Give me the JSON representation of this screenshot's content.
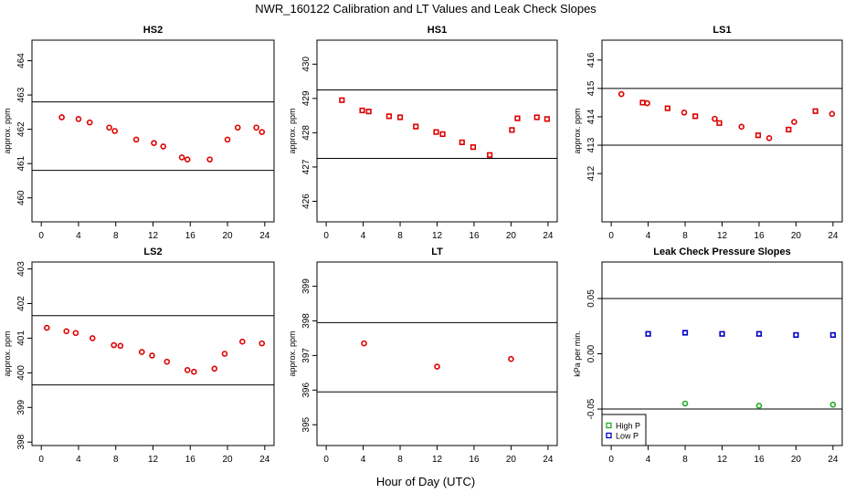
{
  "figure": {
    "title": "NWR_160122  Calibration and LT Values and Leak Check Slopes",
    "xlabel": "Hour of Day (UTC)"
  },
  "chart_data": [
    {
      "type": "scatter",
      "title": "HS2",
      "ylabel": "approx. ppm",
      "xlim": [
        -1,
        25
      ],
      "ylim": [
        459.3,
        464.6
      ],
      "xticks": [
        0,
        4,
        8,
        12,
        16,
        20,
        24
      ],
      "xtick_labels": [
        "0",
        "4",
        "8",
        "12",
        "16",
        "20",
        "24"
      ],
      "yticks": [
        460,
        461,
        462,
        463,
        464
      ],
      "ytick_labels": [
        "460",
        "461",
        "462",
        "463",
        "464"
      ],
      "hlines": [
        462.8,
        460.8
      ],
      "series": [
        {
          "marker": "circle",
          "color": "#dd0000",
          "points": [
            [
              2.2,
              462.35
            ],
            [
              4.0,
              462.3
            ],
            [
              5.2,
              462.2
            ],
            [
              7.3,
              462.05
            ],
            [
              7.9,
              461.95
            ],
            [
              10.2,
              461.7
            ],
            [
              12.1,
              461.6
            ],
            [
              13.1,
              461.5
            ],
            [
              15.1,
              461.18
            ],
            [
              15.7,
              461.12
            ],
            [
              18.1,
              461.12
            ],
            [
              20.0,
              461.7
            ],
            [
              21.1,
              462.05
            ],
            [
              23.1,
              462.05
            ],
            [
              23.7,
              461.92
            ]
          ]
        }
      ]
    },
    {
      "type": "scatter",
      "title": "HS1",
      "ylabel": "approx. ppm",
      "xlim": [
        -1,
        25
      ],
      "ylim": [
        425.4,
        430.7
      ],
      "xticks": [
        0,
        4,
        8,
        12,
        16,
        20,
        24
      ],
      "xtick_labels": [
        "0",
        "4",
        "8",
        "12",
        "16",
        "20",
        "24"
      ],
      "yticks": [
        426,
        427,
        428,
        429,
        430
      ],
      "ytick_labels": [
        "426",
        "427",
        "428",
        "429",
        "430"
      ],
      "hlines": [
        429.25,
        427.25
      ],
      "series": [
        {
          "marker": "square",
          "color": "#dd0000",
          "points": [
            [
              1.7,
              428.95
            ],
            [
              3.9,
              428.65
            ],
            [
              4.6,
              428.62
            ],
            [
              6.8,
              428.48
            ],
            [
              8.0,
              428.45
            ],
            [
              9.7,
              428.18
            ],
            [
              11.9,
              428.02
            ],
            [
              12.6,
              427.96
            ],
            [
              14.7,
              427.72
            ],
            [
              15.9,
              427.58
            ],
            [
              17.7,
              427.35
            ],
            [
              20.1,
              428.08
            ],
            [
              20.7,
              428.42
            ],
            [
              22.8,
              428.45
            ],
            [
              23.9,
              428.4
            ]
          ]
        }
      ]
    },
    {
      "type": "scatter",
      "title": "LS1",
      "ylabel": "approx. ppm",
      "xlim": [
        -1,
        25
      ],
      "ylim": [
        410.3,
        416.7
      ],
      "xticks": [
        0,
        4,
        8,
        12,
        16,
        20,
        24
      ],
      "xtick_labels": [
        "0",
        "4",
        "8",
        "12",
        "16",
        "20",
        "24"
      ],
      "yticks": [
        412,
        413,
        414,
        415,
        416
      ],
      "ytick_labels": [
        "412",
        "413",
        "414",
        "415",
        "416"
      ],
      "hlines": [
        415.0,
        413.0
      ],
      "series": [
        {
          "marker": "mixed",
          "color": "#dd0000",
          "points": [
            [
              1.1,
              414.8
            ],
            [
              3.4,
              414.5
            ],
            [
              3.9,
              414.48
            ],
            [
              6.1,
              414.3
            ],
            [
              7.9,
              414.15
            ],
            [
              9.1,
              414.02
            ],
            [
              11.2,
              413.93
            ],
            [
              11.7,
              413.78
            ],
            [
              14.1,
              413.65
            ],
            [
              15.9,
              413.35
            ],
            [
              17.1,
              413.25
            ],
            [
              19.2,
              413.55
            ],
            [
              19.8,
              413.82
            ],
            [
              22.1,
              414.2
            ],
            [
              23.9,
              414.1
            ]
          ]
        }
      ]
    },
    {
      "type": "scatter",
      "title": "LS2",
      "ylabel": "approx. ppm",
      "xlim": [
        -1,
        25
      ],
      "ylim": [
        397.9,
        403.2
      ],
      "xticks": [
        0,
        4,
        8,
        12,
        16,
        20,
        24
      ],
      "xtick_labels": [
        "0",
        "4",
        "8",
        "12",
        "16",
        "20",
        "24"
      ],
      "yticks": [
        398,
        399,
        400,
        401,
        402,
        403
      ],
      "ytick_labels": [
        "398",
        "399",
        "400",
        "401",
        "402",
        "403"
      ],
      "hlines": [
        401.65,
        399.65
      ],
      "series": [
        {
          "marker": "circle",
          "color": "#dd0000",
          "points": [
            [
              0.6,
              401.3
            ],
            [
              2.7,
              401.2
            ],
            [
              3.7,
              401.15
            ],
            [
              5.5,
              401.0
            ],
            [
              7.8,
              400.8
            ],
            [
              8.5,
              400.78
            ],
            [
              10.8,
              400.6
            ],
            [
              11.9,
              400.5
            ],
            [
              13.5,
              400.32
            ],
            [
              15.7,
              400.08
            ],
            [
              16.4,
              400.03
            ],
            [
              18.6,
              400.12
            ],
            [
              19.7,
              400.55
            ],
            [
              21.6,
              400.9
            ],
            [
              23.7,
              400.85
            ]
          ]
        }
      ]
    },
    {
      "type": "scatter",
      "title": "LT",
      "ylabel": "approx. ppm",
      "xlim": [
        -1,
        25
      ],
      "ylim": [
        394.4,
        399.7
      ],
      "xticks": [
        0,
        4,
        8,
        12,
        16,
        20,
        24
      ],
      "xtick_labels": [
        "0",
        "4",
        "8",
        "12",
        "16",
        "20",
        "24"
      ],
      "yticks": [
        395,
        396,
        397,
        398,
        399
      ],
      "ytick_labels": [
        "395",
        "396",
        "397",
        "398",
        "399"
      ],
      "hlines": [
        397.95,
        395.95
      ],
      "series": [
        {
          "marker": "circle",
          "color": "#dd0000",
          "points": [
            [
              4.1,
              397.35
            ],
            [
              12.0,
              396.68
            ],
            [
              20.0,
              396.9
            ]
          ]
        }
      ]
    },
    {
      "type": "scatter",
      "title": "Leak Check Pressure Slopes",
      "ylabel": "kPa per min.",
      "xlim": [
        -1,
        25
      ],
      "ylim": [
        -0.083,
        0.083
      ],
      "xticks": [
        0,
        4,
        8,
        12,
        16,
        20,
        24
      ],
      "xtick_labels": [
        "0",
        "4",
        "8",
        "12",
        "16",
        "20",
        "24"
      ],
      "yticks": [
        -0.05,
        0.0,
        0.05
      ],
      "ytick_labels": [
        "-0.05",
        "0.00",
        "0.05"
      ],
      "hlines": [
        0.05,
        -0.05
      ],
      "legend": {
        "position": "bottom-left",
        "items": [
          {
            "label": "High P",
            "color": "#22aa22"
          },
          {
            "label": "Low P",
            "color": "#0000cc"
          }
        ]
      },
      "series": [
        {
          "name": "High P",
          "marker": "circle",
          "color": "#22aa22",
          "points": [
            [
              8.0,
              -0.045
            ],
            [
              16.0,
              -0.047
            ],
            [
              24.0,
              -0.046
            ]
          ]
        },
        {
          "name": "Low P",
          "marker": "square",
          "color": "#0000cc",
          "points": [
            [
              4.0,
              0.018
            ],
            [
              8.0,
              0.019
            ],
            [
              12.0,
              0.018
            ],
            [
              16.0,
              0.018
            ],
            [
              20.0,
              0.017
            ],
            [
              24.0,
              0.017
            ]
          ]
        }
      ]
    }
  ]
}
